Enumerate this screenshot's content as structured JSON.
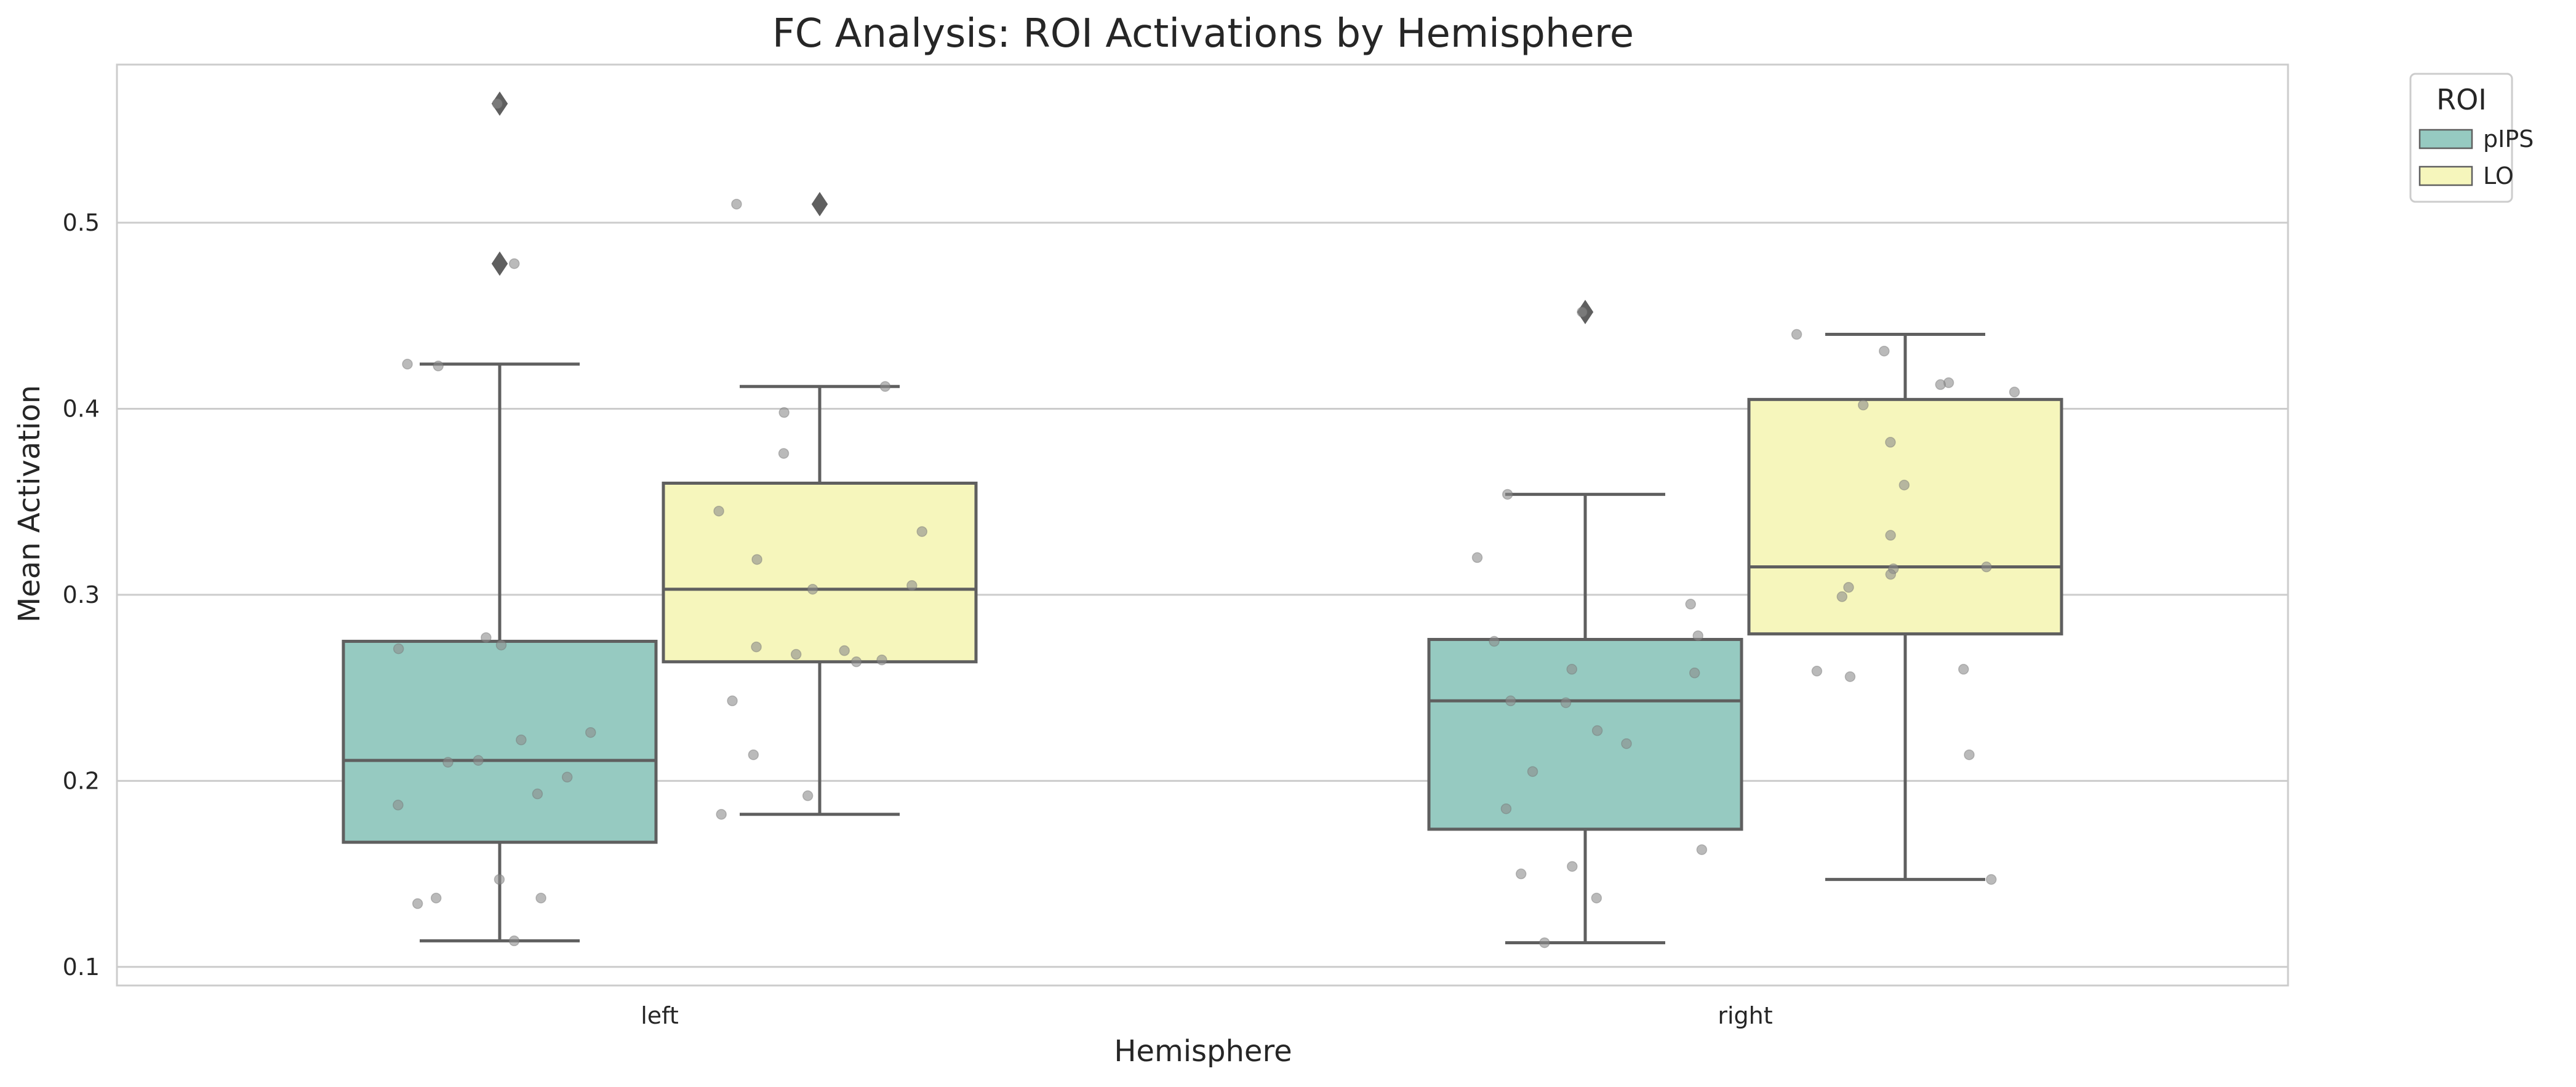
{
  "colors": {
    "pIPS": "#96cac1",
    "LO": "#f6f6bc",
    "line": "#5f5f5f",
    "grid": "#cccccc",
    "points": "#8c8c8c"
  },
  "chart_data": {
    "type": "box",
    "title": "FC Analysis: ROI Activations by Hemisphere",
    "xlabel": "Hemisphere",
    "ylabel": "Mean Activation",
    "categories": [
      "left",
      "right"
    ],
    "ylim": [
      0.09,
      0.585
    ],
    "yticks": [
      0.1,
      0.2,
      0.3,
      0.4,
      0.5
    ],
    "ytick_labels": [
      "0.1",
      "0.2",
      "0.3",
      "0.4",
      "0.5"
    ],
    "grid": true,
    "legend": {
      "title": "ROI",
      "position": "top-right outside",
      "entries": [
        "pIPS",
        "LO"
      ]
    },
    "series": [
      {
        "name": "pIPS",
        "boxes": [
          {
            "category": "left",
            "q1": 0.167,
            "median": 0.211,
            "q3": 0.275,
            "whisker_low": 0.114,
            "whisker_high": 0.424,
            "outliers": [
              0.564,
              0.478
            ]
          },
          {
            "category": "right",
            "q1": 0.174,
            "median": 0.243,
            "q3": 0.276,
            "whisker_low": 0.113,
            "whisker_high": 0.354,
            "outliers": [
              0.452
            ]
          }
        ],
        "points": [
          {
            "category": "left",
            "values": [
              0.564,
              0.478,
              0.424,
              0.423,
              0.277,
              0.273,
              0.271,
              0.226,
              0.222,
              0.211,
              0.21,
              0.202,
              0.193,
              0.187,
              0.147,
              0.137,
              0.137,
              0.134,
              0.114
            ]
          },
          {
            "category": "right",
            "values": [
              0.452,
              0.354,
              0.32,
              0.295,
              0.278,
              0.275,
              0.26,
              0.258,
              0.243,
              0.242,
              0.227,
              0.22,
              0.205,
              0.185,
              0.163,
              0.154,
              0.15,
              0.137,
              0.113
            ]
          }
        ]
      },
      {
        "name": "LO",
        "boxes": [
          {
            "category": "left",
            "q1": 0.264,
            "median": 0.303,
            "q3": 0.36,
            "whisker_low": 0.182,
            "whisker_high": 0.412,
            "outliers": [
              0.51
            ]
          },
          {
            "category": "right",
            "q1": 0.279,
            "median": 0.315,
            "q3": 0.405,
            "whisker_low": 0.147,
            "whisker_high": 0.44,
            "outliers": []
          }
        ],
        "points": [
          {
            "category": "left",
            "values": [
              0.51,
              0.412,
              0.398,
              0.376,
              0.345,
              0.334,
              0.319,
              0.305,
              0.303,
              0.272,
              0.27,
              0.268,
              0.265,
              0.264,
              0.243,
              0.214,
              0.192,
              0.182
            ]
          },
          {
            "category": "right",
            "values": [
              0.44,
              0.431,
              0.414,
              0.413,
              0.409,
              0.402,
              0.382,
              0.359,
              0.332,
              0.315,
              0.314,
              0.311,
              0.304,
              0.299,
              0.26,
              0.259,
              0.256,
              0.214,
              0.147
            ]
          }
        ]
      }
    ]
  }
}
